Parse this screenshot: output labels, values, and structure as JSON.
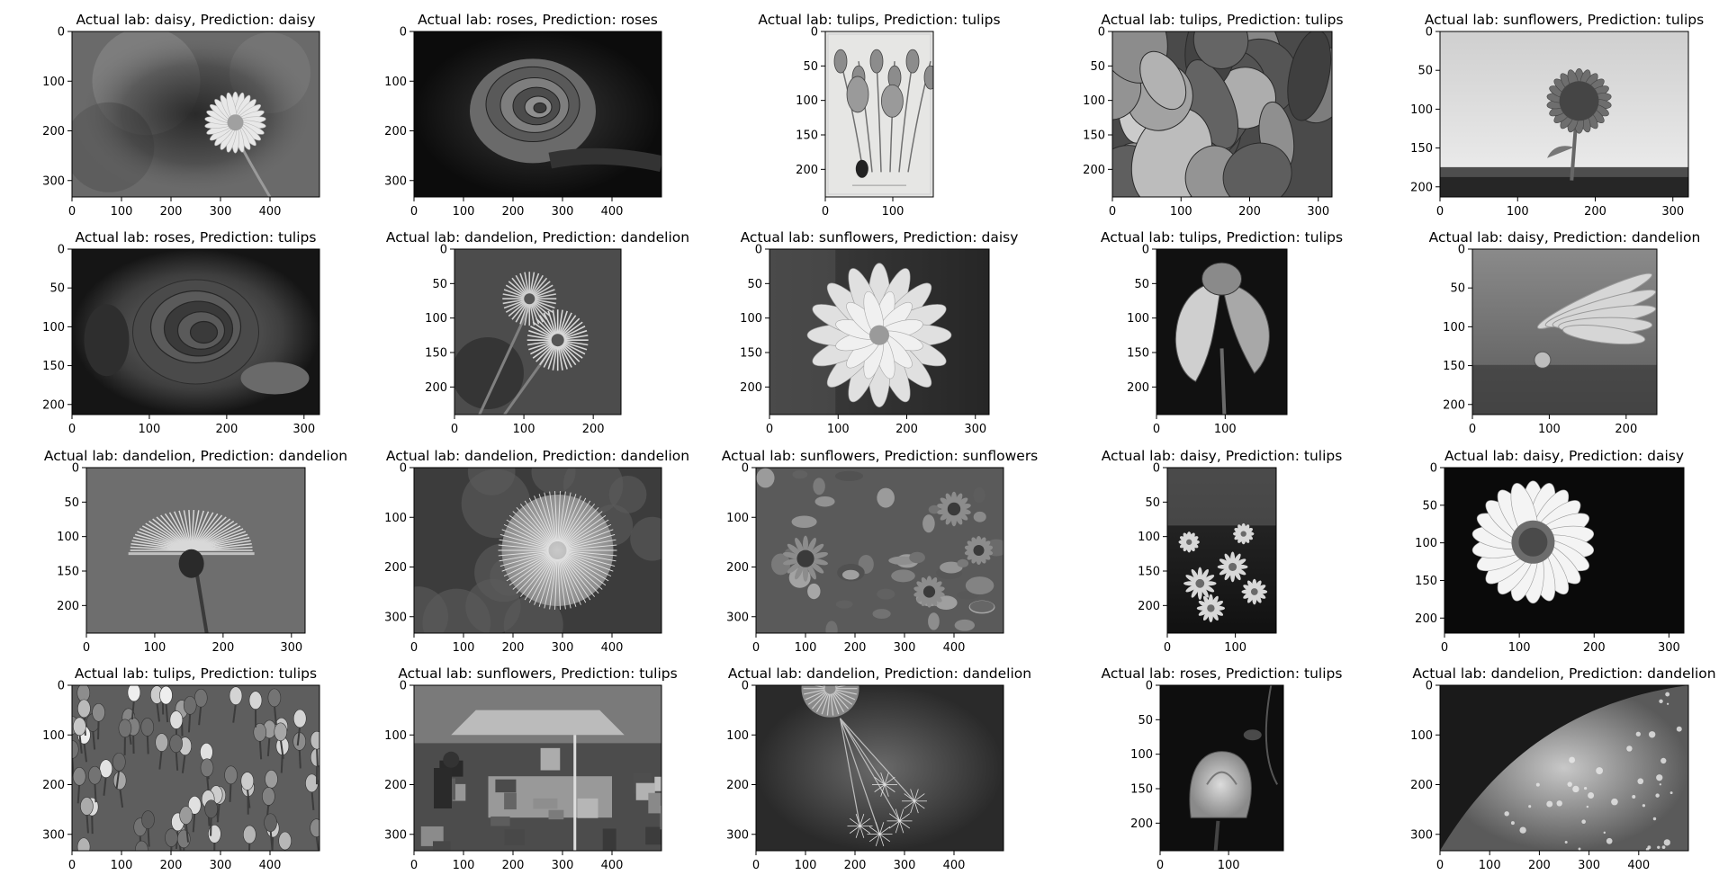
{
  "figure": {
    "background": "#ffffff",
    "text_color": "#000000"
  },
  "chart_data": [
    {
      "type": "image",
      "title": "Actual lab: daisy, Prediction: daisy",
      "xlim": [
        0,
        500
      ],
      "ylim": [
        0,
        333
      ],
      "xticks": [
        0,
        100,
        200,
        300,
        400
      ],
      "yticks": [
        0,
        100,
        200,
        300
      ],
      "scene": "daisy-blur"
    },
    {
      "type": "image",
      "title": "Actual lab: roses, Prediction: roses",
      "xlim": [
        0,
        500
      ],
      "ylim": [
        0,
        333
      ],
      "xticks": [
        0,
        100,
        200,
        300,
        400
      ],
      "yticks": [
        0,
        100,
        200,
        300
      ],
      "scene": "rose-dark"
    },
    {
      "type": "image",
      "title": "Actual lab: tulips, Prediction: tulips",
      "xlim": [
        0,
        160
      ],
      "ylim": [
        0,
        240
      ],
      "xticks": [
        0,
        100
      ],
      "yticks": [
        0,
        50,
        100,
        150,
        200
      ],
      "scene": "botanical"
    },
    {
      "type": "image",
      "title": "Actual lab: tulips, Prediction: tulips",
      "xlim": [
        0,
        320
      ],
      "ylim": [
        0,
        240
      ],
      "xticks": [
        0,
        100,
        200,
        300
      ],
      "yticks": [
        0,
        50,
        100,
        150,
        200
      ],
      "scene": "tulip-closeup"
    },
    {
      "type": "image",
      "title": "Actual lab: sunflowers, Prediction: tulips",
      "xlim": [
        0,
        320
      ],
      "ylim": [
        0,
        213
      ],
      "xticks": [
        0,
        100,
        200,
        300
      ],
      "yticks": [
        0,
        50,
        100,
        150,
        200
      ],
      "scene": "sunflower-sky"
    },
    {
      "type": "image",
      "title": "Actual lab: roses, Prediction: tulips",
      "xlim": [
        0,
        320
      ],
      "ylim": [
        0,
        213
      ],
      "xticks": [
        0,
        100,
        200,
        300
      ],
      "yticks": [
        0,
        50,
        100,
        150,
        200
      ],
      "scene": "rose-vignette"
    },
    {
      "type": "image",
      "title": "Actual lab: dandelion, Prediction: dandelion",
      "xlim": [
        0,
        240
      ],
      "ylim": [
        0,
        240
      ],
      "xticks": [
        0,
        100,
        200
      ],
      "yticks": [
        0,
        50,
        100,
        150,
        200
      ],
      "scene": "two-dandelions"
    },
    {
      "type": "image",
      "title": "Actual lab: sunflowers, Prediction: daisy",
      "xlim": [
        0,
        320
      ],
      "ylim": [
        0,
        240
      ],
      "xticks": [
        0,
        100,
        200,
        300
      ],
      "yticks": [
        0,
        50,
        100,
        150,
        200
      ],
      "scene": "dahlia"
    },
    {
      "type": "image",
      "title": "Actual lab: tulips, Prediction: tulips",
      "xlim": [
        0,
        190
      ],
      "ylim": [
        0,
        240
      ],
      "xticks": [
        0,
        100
      ],
      "yticks": [
        0,
        50,
        100,
        150,
        200
      ],
      "scene": "iris"
    },
    {
      "type": "image",
      "title": "Actual lab: daisy, Prediction: dandelion",
      "xlim": [
        0,
        240
      ],
      "ylim": [
        0,
        213
      ],
      "xticks": [
        0,
        100,
        200
      ],
      "yticks": [
        0,
        50,
        100,
        150,
        200
      ],
      "scene": "petal-drop"
    },
    {
      "type": "image",
      "title": "Actual lab: dandelion, Prediction: dandelion",
      "xlim": [
        0,
        320
      ],
      "ylim": [
        0,
        240
      ],
      "xticks": [
        0,
        100,
        200,
        300
      ],
      "yticks": [
        0,
        50,
        100,
        150,
        200
      ],
      "scene": "dandelion-half"
    },
    {
      "type": "image",
      "title": "Actual lab: dandelion, Prediction: dandelion",
      "xlim": [
        0,
        500
      ],
      "ylim": [
        0,
        333
      ],
      "xticks": [
        0,
        100,
        200,
        300,
        400
      ],
      "yticks": [
        0,
        100,
        200,
        300
      ],
      "scene": "seed-head"
    },
    {
      "type": "image",
      "title": "Actual lab: sunflowers, Prediction: sunflowers",
      "xlim": [
        0,
        500
      ],
      "ylim": [
        0,
        333
      ],
      "xticks": [
        0,
        100,
        200,
        300,
        400
      ],
      "yticks": [
        0,
        100,
        200,
        300
      ],
      "scene": "sunflower-field"
    },
    {
      "type": "image",
      "title": "Actual lab: daisy, Prediction: tulips",
      "xlim": [
        0,
        160
      ],
      "ylim": [
        0,
        240
      ],
      "xticks": [
        0,
        100
      ],
      "yticks": [
        0,
        50,
        100,
        150,
        200
      ],
      "scene": "daisy-cluster"
    },
    {
      "type": "image",
      "title": "Actual lab: daisy, Prediction: daisy",
      "xlim": [
        0,
        320
      ],
      "ylim": [
        0,
        220
      ],
      "xticks": [
        0,
        100,
        200,
        300
      ],
      "yticks": [
        0,
        50,
        100,
        150,
        200
      ],
      "scene": "daisy-black"
    },
    {
      "type": "image",
      "title": "Actual lab: tulips, Prediction: tulips",
      "xlim": [
        0,
        500
      ],
      "ylim": [
        0,
        333
      ],
      "xticks": [
        0,
        100,
        200,
        300,
        400
      ],
      "yticks": [
        0,
        100,
        200,
        300
      ],
      "scene": "tulip-field"
    },
    {
      "type": "image",
      "title": "Actual lab: sunflowers, Prediction: tulips",
      "xlim": [
        0,
        500
      ],
      "ylim": [
        0,
        333
      ],
      "xticks": [
        0,
        100,
        200,
        300,
        400
      ],
      "yticks": [
        0,
        100,
        200,
        300
      ],
      "scene": "market"
    },
    {
      "type": "image",
      "title": "Actual lab: dandelion, Prediction: dandelion",
      "xlim": [
        0,
        500
      ],
      "ylim": [
        0,
        333
      ],
      "xticks": [
        0,
        100,
        200,
        300,
        400
      ],
      "yticks": [
        0,
        100,
        200,
        300
      ],
      "scene": "dandelion-seeds"
    },
    {
      "type": "image",
      "title": "Actual lab: roses, Prediction: tulips",
      "xlim": [
        0,
        180
      ],
      "ylim": [
        0,
        240
      ],
      "xticks": [
        0,
        100
      ],
      "yticks": [
        0,
        50,
        100,
        150,
        200
      ],
      "scene": "rose-bud"
    },
    {
      "type": "image",
      "title": "Actual lab: dandelion, Prediction: dandelion",
      "xlim": [
        0,
        500
      ],
      "ylim": [
        0,
        333
      ],
      "xticks": [
        0,
        100,
        200,
        300,
        400
      ],
      "yticks": [
        0,
        100,
        200,
        300
      ],
      "scene": "dew-macro"
    }
  ]
}
